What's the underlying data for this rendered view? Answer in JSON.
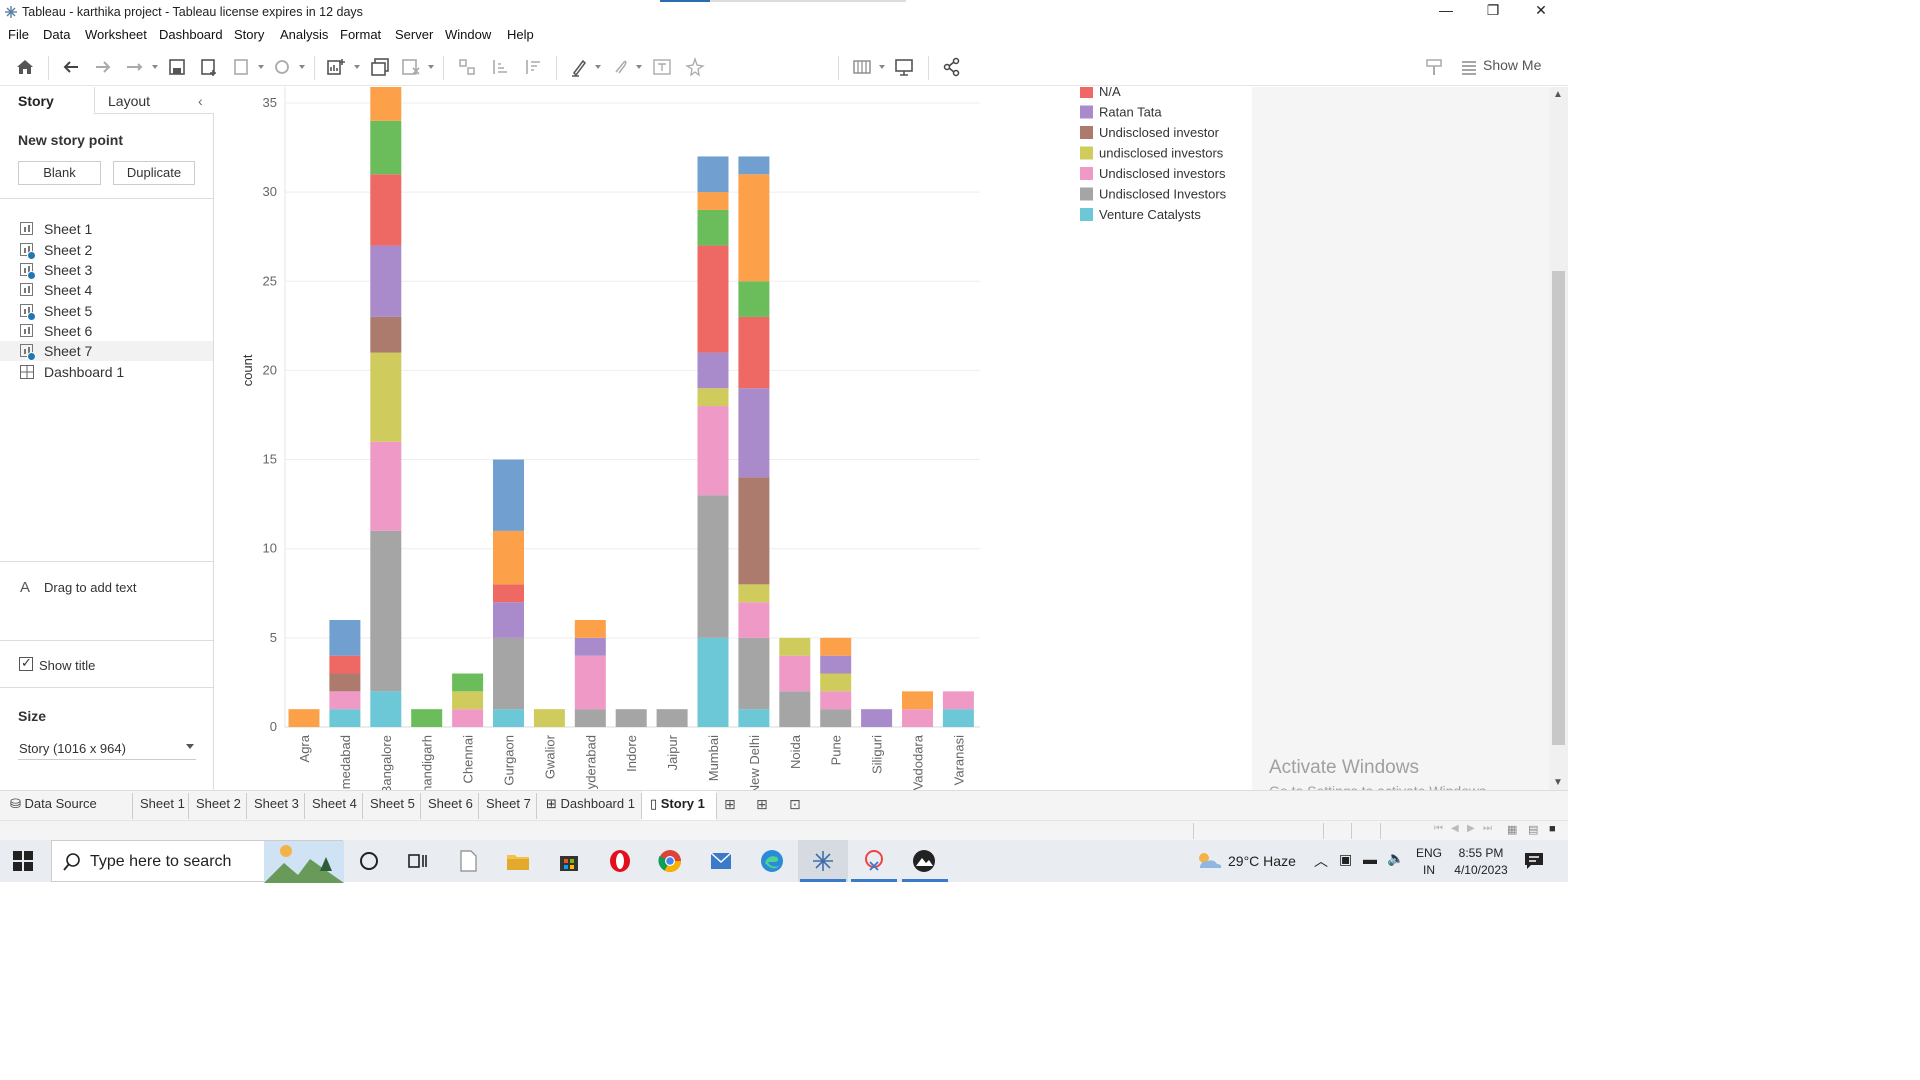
{
  "window": {
    "title": "Tableau - karthika project - Tableau license expires in 12 days",
    "minimize": "—",
    "restore": "❐",
    "close": "✕"
  },
  "menu": [
    "File",
    "Data",
    "Worksheet",
    "Dashboard",
    "Story",
    "Analysis",
    "Format",
    "Server",
    "Window",
    "Help"
  ],
  "toolbar": {
    "show_me": "Show Me"
  },
  "left_panel": {
    "tabs": {
      "story": "Story",
      "layout": "Layout"
    },
    "new_story_point": "New story point",
    "blank_btn": "Blank",
    "duplicate_btn": "Duplicate",
    "sheets": [
      {
        "label": "Sheet 1",
        "used": false
      },
      {
        "label": "Sheet 2",
        "used": true
      },
      {
        "label": "Sheet 3",
        "used": true
      },
      {
        "label": "Sheet 4",
        "used": false
      },
      {
        "label": "Sheet 5",
        "used": true
      },
      {
        "label": "Sheet 6",
        "used": false
      },
      {
        "label": "Sheet 7",
        "used": true
      },
      {
        "label": "Dashboard 1",
        "used": false,
        "dashboard": true
      }
    ],
    "drag_text": "Drag to add text",
    "show_title": "Show title",
    "size_label": "Size",
    "size_value": "Story (1016 x 964)"
  },
  "chart_data": {
    "type": "bar",
    "stacked": true,
    "ylabel": "count",
    "ylim": [
      0,
      36
    ],
    "yticks": [
      0,
      5,
      10,
      15,
      20,
      25,
      30,
      35
    ],
    "categories": [
      "Agra",
      "Ahmedabad",
      "Bangalore",
      "Chandigarh",
      "Chennai",
      "Gurgaon",
      "Gwalior",
      "Hyderabad",
      "Indore",
      "Jaipur",
      "Mumbai",
      "New Delhi",
      "Noida",
      "Pune",
      "Siliguri",
      "Vadodara",
      "Varanasi"
    ],
    "stack_order": [
      "Venture Catalysts",
      "Undisclosed Investors",
      "Undisclosed investors",
      "undisclosed investors",
      "Undisclosed investor",
      "Ratan Tata",
      "N/A",
      "green",
      "orange",
      "blue"
    ],
    "series": [
      {
        "name": "Venture Catalysts",
        "color": "#6cc8d6",
        "values": [
          0,
          1,
          2,
          0,
          0,
          1,
          0,
          0,
          0,
          0,
          5,
          1,
          0,
          0,
          0,
          0,
          1
        ]
      },
      {
        "name": "Undisclosed Investors",
        "color": "#a5a5a5",
        "values": [
          0,
          0,
          9,
          0,
          0,
          4,
          0,
          1,
          1,
          1,
          8,
          4,
          2,
          1,
          0,
          0,
          0
        ]
      },
      {
        "name": "Undisclosed investors",
        "color": "#ef9ac6",
        "values": [
          0,
          1,
          5,
          0,
          1,
          0,
          0,
          3,
          0,
          0,
          5,
          2,
          2,
          1,
          0,
          1,
          1
        ]
      },
      {
        "name": "undisclosed investors",
        "color": "#cfcc5d",
        "values": [
          0,
          0,
          5,
          0,
          1,
          0,
          1,
          0,
          0,
          0,
          1,
          1,
          1,
          1,
          0,
          0,
          0
        ]
      },
      {
        "name": "Undisclosed investor",
        "color": "#ad7a6e",
        "values": [
          0,
          1,
          2,
          0,
          0,
          0,
          0,
          0,
          0,
          0,
          0,
          6,
          0,
          0,
          0,
          0,
          0
        ]
      },
      {
        "name": "Ratan Tata",
        "color": "#a98bcb",
        "values": [
          0,
          0,
          4,
          0,
          0,
          2,
          0,
          1,
          0,
          0,
          2,
          5,
          0,
          1,
          1,
          0,
          0
        ]
      },
      {
        "name": "N/A",
        "color": "#ee6864",
        "values": [
          0,
          1,
          4,
          0,
          0,
          1,
          0,
          0,
          0,
          0,
          6,
          4,
          0,
          0,
          0,
          0,
          0
        ]
      },
      {
        "color": "#6abd5a",
        "values": [
          0,
          0,
          3,
          1,
          1,
          0,
          0,
          0,
          0,
          0,
          2,
          2,
          0,
          0,
          0,
          0,
          0
        ]
      },
      {
        "color": "#fda04a",
        "values": [
          1,
          0,
          2,
          0,
          0,
          3,
          0,
          1,
          0,
          0,
          1,
          6,
          0,
          1,
          0,
          1,
          0
        ]
      },
      {
        "color": "#719fcf",
        "values": [
          0,
          2,
          0,
          0,
          0,
          4,
          0,
          0,
          0,
          0,
          2,
          1,
          0,
          0,
          0,
          0,
          0
        ]
      }
    ],
    "legend": [
      "N/A",
      "Ratan Tata",
      "Undisclosed investor",
      "undisclosed investors",
      "Undisclosed investors",
      "Undisclosed Investors",
      "Venture Catalysts"
    ],
    "grid": true
  },
  "watermark": {
    "line1": "Activate Windows",
    "line2": "Go to Settings to activate Windows."
  },
  "sheet_tabs": {
    "data_source": "Data Source",
    "tabs": [
      "Sheet 1",
      "Sheet 2",
      "Sheet 3",
      "Sheet 4",
      "Sheet 5",
      "Sheet 6",
      "Sheet 7"
    ],
    "dashboard": "Dashboard 1",
    "story": "Story 1"
  },
  "taskbar": {
    "search_placeholder": "Type here to search",
    "weather": "29°C  Haze",
    "lang_line1": "ENG",
    "lang_line2": "IN",
    "time": "8:55 PM",
    "date": "4/10/2023"
  }
}
